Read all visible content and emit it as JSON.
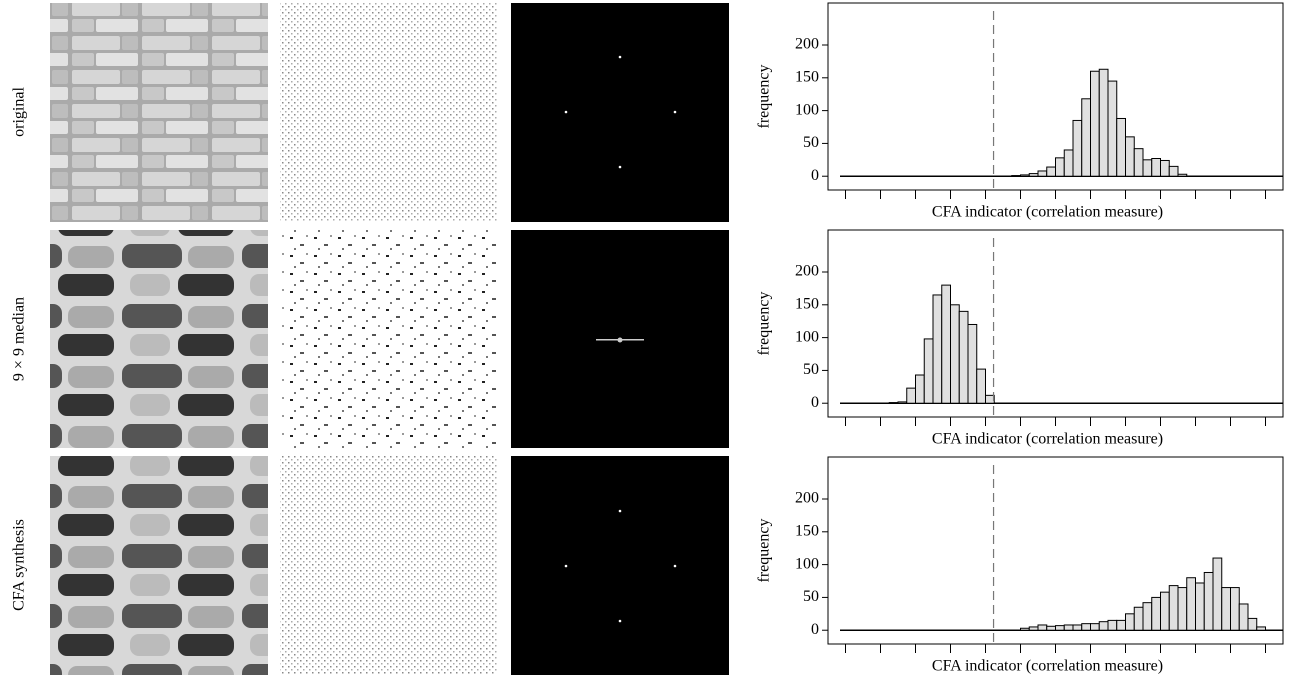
{
  "row_labels": [
    "original",
    "9 × 9 median",
    "CFA synthesis"
  ],
  "chart_data": [
    {
      "type": "histogram",
      "ylabel": "frequency",
      "xlabel": "CFA indicator (correlation measure)",
      "bins": [
        4.75,
        5,
        5.25,
        5.5,
        5.75,
        6,
        6.25,
        6.5,
        6.75,
        7,
        7.25,
        7.5,
        7.75,
        8,
        8.25,
        8.5,
        8.75,
        9,
        9.25,
        9.5,
        9.75
      ],
      "counts": [
        1,
        2,
        4,
        8,
        14,
        28,
        40,
        85,
        118,
        160,
        163,
        145,
        88,
        60,
        42,
        25,
        27,
        24,
        15,
        3
      ],
      "threshold": 4.23,
      "color": "#e0e0e0",
      "xlim": [
        -0.5,
        12.5
      ],
      "xticks": [
        0,
        1,
        2,
        3,
        4,
        5,
        6,
        7,
        8,
        9,
        10,
        11,
        12
      ],
      "ylim": [
        -21,
        264
      ],
      "yticks": [
        0,
        50,
        100,
        150,
        200
      ]
    },
    {
      "type": "histogram",
      "ylabel": "frequency",
      "xlabel": "CFA indicator (correlation measure)",
      "bins": [
        1.25,
        1.5,
        1.75,
        2,
        2.25,
        2.5,
        2.75,
        3,
        3.25,
        3.5,
        3.75,
        4,
        4.25
      ],
      "counts": [
        1,
        2,
        23,
        43,
        98,
        165,
        180,
        150,
        140,
        120,
        52,
        12
      ],
      "threshold": 4.23,
      "color": "#e0e0e0",
      "xlim": [
        -0.5,
        12.5
      ],
      "xticks": [
        0,
        1,
        2,
        3,
        4,
        5,
        6,
        7,
        8,
        9,
        10,
        11,
        12
      ],
      "ylim": [
        -21,
        264
      ],
      "yticks": [
        0,
        50,
        100,
        150,
        200
      ]
    },
    {
      "type": "histogram",
      "ylabel": "frequency",
      "xlabel": "CFA indicator (correlation measure)",
      "bins": [
        5,
        5.25,
        5.5,
        5.75,
        6,
        6.25,
        6.5,
        6.75,
        7,
        7.25,
        7.5,
        7.75,
        8,
        8.25,
        8.5,
        8.75,
        9,
        9.25,
        9.5,
        9.75,
        10,
        10.25,
        10.5,
        10.75,
        11,
        11.25,
        11.5,
        11.75,
        12
      ],
      "counts": [
        3,
        5,
        8,
        6,
        7,
        8,
        8,
        10,
        10,
        13,
        15,
        15,
        25,
        35,
        42,
        50,
        58,
        68,
        65,
        80,
        72,
        88,
        110,
        65,
        65,
        40,
        18,
        5
      ],
      "threshold": 4.23,
      "color": "#e0e0e0",
      "xlim": [
        -0.5,
        12.5
      ],
      "xticks": [
        0,
        1,
        2,
        3,
        4,
        5,
        6,
        7,
        8,
        9,
        10,
        11,
        12
      ],
      "ylim": [
        -21,
        264
      ],
      "yticks": [
        0,
        50,
        100,
        150,
        200
      ]
    }
  ]
}
